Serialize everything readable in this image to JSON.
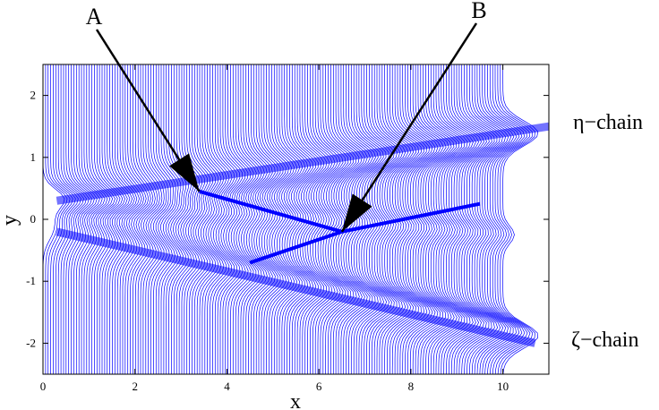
{
  "chart_data": {
    "type": "line",
    "title": "",
    "xlabel": "x",
    "ylabel": "y",
    "xlim": [
      0,
      11
    ],
    "ylim": [
      -2.5,
      2.5
    ],
    "x_ticks": [
      "0",
      "2",
      "4",
      "6",
      "8",
      "10"
    ],
    "y_ticks": [
      "2",
      "1",
      "0",
      "-1",
      "-2"
    ],
    "line_color": "#0000ff",
    "series_description": "dense family of vertical trace curves over x in [0, 10] with interacting soliton chains",
    "chains": [
      {
        "label": "η−chain",
        "from": [
          0.3,
          0.3
        ],
        "to": [
          11.0,
          1.5
        ]
      },
      {
        "label": "ζ−chain",
        "from": [
          0.3,
          -0.2
        ],
        "to": [
          10.7,
          -2.0
        ]
      }
    ],
    "annotations": [
      {
        "label": "A",
        "point": [
          3.4,
          0.45
        ]
      },
      {
        "label": "B",
        "point": [
          6.5,
          -0.2
        ]
      }
    ]
  }
}
